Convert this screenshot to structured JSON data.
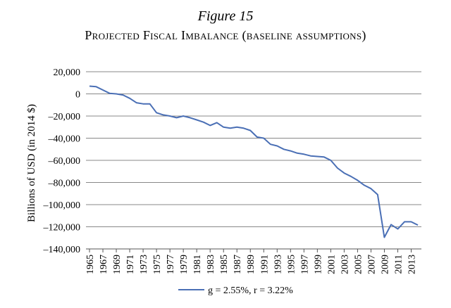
{
  "figure_label": "Figure 15",
  "chart_data": {
    "type": "line",
    "title": "Projected Fiscal Imbalance (baseline assumptions)",
    "xlabel": "",
    "ylabel": "Billions of USD (in 2014 $)",
    "ylim": [
      -140000,
      20000
    ],
    "yticks": [
      20000,
      0,
      -20000,
      -40000,
      -60000,
      -80000,
      -100000,
      -120000,
      -140000
    ],
    "ytick_labels": [
      "20,000",
      "0",
      "–20,000",
      "–40,000",
      "–60,000",
      "–80,000",
      "–100,000",
      "–120,000",
      "–140,000"
    ],
    "xlim": [
      1965,
      2014
    ],
    "xticks": [
      1965,
      1967,
      1969,
      1971,
      1973,
      1975,
      1977,
      1979,
      1981,
      1983,
      1985,
      1987,
      1989,
      1991,
      1993,
      1995,
      1997,
      1999,
      2001,
      2003,
      2005,
      2007,
      2009,
      2011,
      2013
    ],
    "grid": "horizontal",
    "legend_position": "bottom",
    "colors": {
      "line": "#4a6fb5",
      "grid": "#888888",
      "axis": "#555555"
    },
    "series": [
      {
        "name": "g = 2.55%, r = 3.22%",
        "x": [
          1965,
          1966,
          1967,
          1968,
          1969,
          1970,
          1971,
          1972,
          1973,
          1974,
          1975,
          1976,
          1977,
          1978,
          1979,
          1980,
          1981,
          1982,
          1983,
          1984,
          1985,
          1986,
          1987,
          1988,
          1989,
          1990,
          1991,
          1992,
          1993,
          1994,
          1995,
          1996,
          1997,
          1998,
          1999,
          2000,
          2001,
          2002,
          2003,
          2004,
          2005,
          2006,
          2007,
          2008,
          2009,
          2010,
          2011,
          2012,
          2013,
          2014
        ],
        "values": [
          7000,
          6500,
          3500,
          500,
          0,
          -1000,
          -4000,
          -8000,
          -9000,
          -9000,
          -17000,
          -19000,
          -20000,
          -21500,
          -20000,
          -21500,
          -23500,
          -25500,
          -28500,
          -26000,
          -30000,
          -31000,
          -30000,
          -31000,
          -33000,
          -39000,
          -40000,
          -45500,
          -47000,
          -50000,
          -51500,
          -53500,
          -54500,
          -56000,
          -56500,
          -57000,
          -60000,
          -67000,
          -71500,
          -74500,
          -78000,
          -82500,
          -85500,
          -91000,
          -129500,
          -118000,
          -122000,
          -115500,
          -115500,
          -118500
        ]
      }
    ]
  }
}
